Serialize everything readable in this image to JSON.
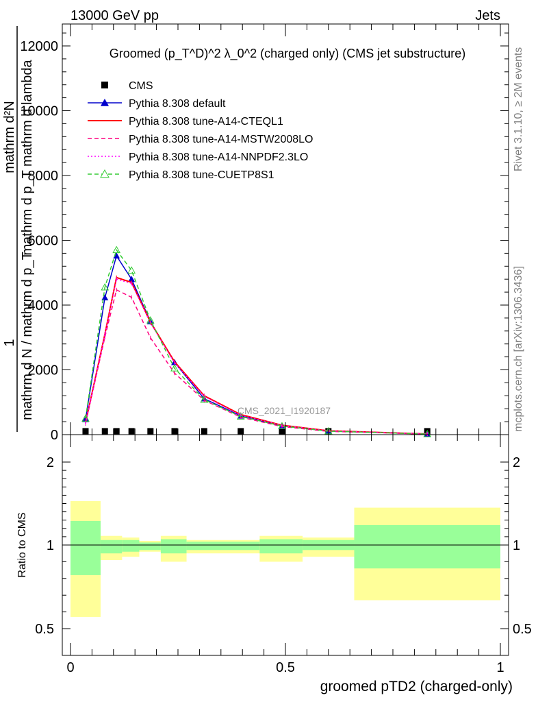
{
  "header": {
    "left": "13000 GeV pp",
    "right": "Jets"
  },
  "side": {
    "rivet": "Rivet 3.1.10, ≥ 2M events",
    "mcplots": "mcplots.cern.ch [arXiv:1306.3436]"
  },
  "chart_data": [
    {
      "type": "line",
      "title": "Groomed (p_T^D)^2 λ_0^2 (charged only) (CMS jet substructure)",
      "watermark": "CMS_2021_I1920187",
      "ylabel_numerator": "mathrm d²N",
      "ylabel_denominator": "mathrm d p_T mathrm d lambda",
      "ylabel_prefix": "1",
      "ylabel_prefix_denominator": "mathrm d N / mathrm d p_T",
      "ylim": [
        0,
        12800
      ],
      "xlim": [
        -0.025,
        1.0
      ],
      "yticks": [
        "0",
        "2000",
        "4000",
        "6000",
        "8000",
        "10000",
        "12000"
      ],
      "legend_placement": "top-left",
      "x": [
        0.035,
        0.08,
        0.107,
        0.142,
        0.186,
        0.242,
        0.311,
        0.396,
        0.492,
        0.6,
        0.83
      ],
      "series": [
        {
          "name": "CMS",
          "style": "marker-square",
          "color": "#000000",
          "values": [
            12,
            12,
            12,
            12,
            12,
            12,
            12,
            12,
            12,
            12,
            12
          ]
        },
        {
          "name": "Pythia 8.308 default",
          "style": "solid-triangle",
          "color": "#0000cc",
          "values": [
            470,
            4230,
            5520,
            4800,
            3490,
            2230,
            1110,
            580,
            270,
            110,
            20
          ]
        },
        {
          "name": "Pythia 8.308 tune-A14-CTEQL1",
          "style": "solid",
          "color": "#ff0000",
          "values": [
            370,
            3100,
            4850,
            4700,
            3470,
            2250,
            1200,
            620,
            290,
            120,
            22
          ]
        },
        {
          "name": "Pythia 8.308 tune-A14-MSTW2008LO",
          "style": "dashed",
          "color": "#ff0080",
          "values": [
            340,
            3010,
            4470,
            4240,
            2990,
            1900,
            1060,
            540,
            250,
            100,
            18
          ]
        },
        {
          "name": "Pythia 8.308 tune-A14-NNPDF2.3LO",
          "style": "dotted",
          "color": "#ff00ff",
          "values": [
            360,
            3080,
            4800,
            4670,
            3450,
            2220,
            1180,
            600,
            285,
            118,
            21
          ]
        },
        {
          "name": "Pythia 8.308 tune-CUETP8S1",
          "style": "dashed-open-triangle",
          "color": "#33cc33",
          "values": [
            500,
            4550,
            5700,
            5070,
            3530,
            2050,
            1080,
            560,
            265,
            108,
            19
          ]
        }
      ]
    },
    {
      "type": "area",
      "ylabel": "Ratio to CMS",
      "xlabel": "groomed pTD2 (charged-only)",
      "ylim": [
        0.42,
        2.3
      ],
      "yticks": [
        "0.5",
        "1",
        "2"
      ],
      "xticks": [
        "0",
        "0.5",
        "1"
      ],
      "bins": [
        {
          "lo": 0.0,
          "hi": 0.07,
          "in_lo": 0.82,
          "in_hi": 1.29,
          "out_lo": 0.57,
          "out_hi": 1.53
        },
        {
          "lo": 0.07,
          "hi": 0.12,
          "in_lo": 0.95,
          "in_hi": 1.06,
          "out_lo": 0.91,
          "out_hi": 1.11
        },
        {
          "lo": 0.12,
          "hi": 0.16,
          "in_lo": 0.96,
          "in_hi": 1.06,
          "out_lo": 0.93,
          "out_hi": 1.09
        },
        {
          "lo": 0.16,
          "hi": 0.21,
          "in_lo": 0.97,
          "in_hi": 1.03,
          "out_lo": 0.96,
          "out_hi": 1.05
        },
        {
          "lo": 0.21,
          "hi": 0.27,
          "in_lo": 0.95,
          "in_hi": 1.07,
          "out_lo": 0.9,
          "out_hi": 1.11
        },
        {
          "lo": 0.27,
          "hi": 0.44,
          "in_lo": 0.97,
          "in_hi": 1.04,
          "out_lo": 0.95,
          "out_hi": 1.06
        },
        {
          "lo": 0.44,
          "hi": 0.54,
          "in_lo": 0.95,
          "in_hi": 1.07,
          "out_lo": 0.9,
          "out_hi": 1.11
        },
        {
          "lo": 0.54,
          "hi": 0.66,
          "in_lo": 0.97,
          "in_hi": 1.06,
          "out_lo": 0.93,
          "out_hi": 1.09
        },
        {
          "lo": 0.66,
          "hi": 1.0,
          "in_lo": 0.86,
          "in_hi": 1.24,
          "out_lo": 0.67,
          "out_hi": 1.45
        }
      ]
    }
  ]
}
